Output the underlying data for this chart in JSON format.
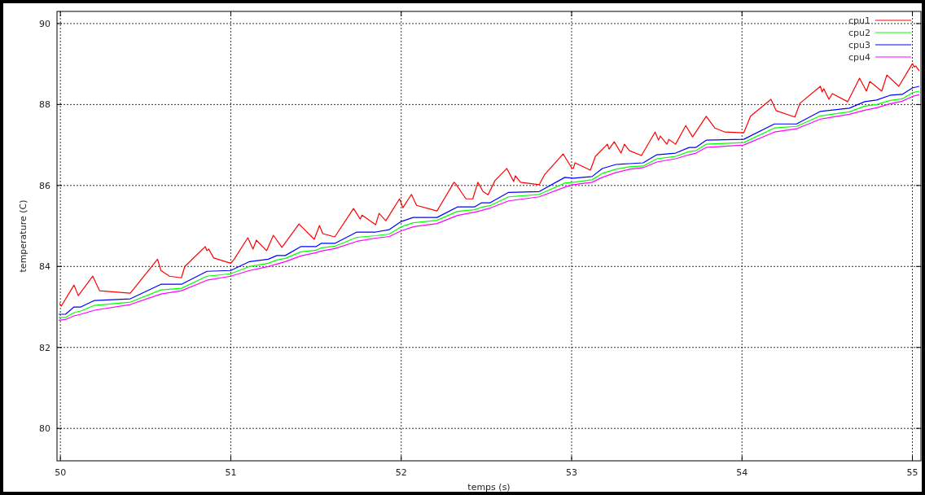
{
  "chart_data": {
    "type": "line",
    "xlabel": "temps (s)",
    "ylabel": "temperature (C)",
    "xlim": [
      49.98,
      55.05
    ],
    "xticks": [
      50,
      51,
      52,
      53,
      54,
      55
    ],
    "ylim": [
      79.2,
      90.3
    ],
    "yticks": [
      80,
      82,
      84,
      86,
      88,
      90
    ],
    "grid": true,
    "legend": "top right",
    "line_style": "solid",
    "marker": "none",
    "series": [
      {
        "name": "cpu1",
        "color": "#ff0000",
        "x": [
          49.995,
          50.005,
          50.08,
          50.105,
          50.19,
          50.23,
          50.41,
          50.57,
          50.59,
          50.64,
          50.71,
          50.73,
          50.85,
          50.86,
          50.87,
          50.9,
          51.0,
          51.02,
          51.1,
          51.13,
          51.15,
          51.21,
          51.25,
          51.3,
          51.4,
          51.49,
          51.52,
          51.54,
          51.61,
          51.72,
          51.76,
          51.77,
          51.85,
          51.87,
          51.91,
          51.99,
          52.01,
          52.06,
          52.09,
          52.21,
          52.31,
          52.32,
          52.38,
          52.42,
          52.45,
          52.48,
          52.51,
          52.55,
          52.62,
          52.66,
          52.67,
          52.7,
          52.81,
          52.84,
          52.95,
          53.0,
          53.01,
          53.02,
          53.11,
          53.14,
          53.21,
          53.22,
          53.25,
          53.29,
          53.31,
          53.34,
          53.41,
          53.49,
          53.51,
          53.52,
          53.56,
          53.57,
          53.61,
          53.67,
          53.71,
          53.79,
          53.84,
          53.9,
          54.01,
          54.05,
          54.17,
          54.2,
          54.31,
          54.34,
          54.46,
          54.47,
          54.48,
          54.51,
          54.53,
          54.62,
          54.69,
          54.73,
          54.75,
          54.82,
          54.85,
          54.92,
          55.0,
          55.01,
          55.02,
          55.04
        ],
        "values": [
          83.09,
          83.02,
          83.54,
          83.28,
          83.76,
          83.4,
          83.34,
          84.18,
          83.9,
          83.76,
          83.72,
          84.0,
          84.49,
          84.39,
          84.43,
          84.21,
          84.08,
          84.18,
          84.71,
          84.43,
          84.65,
          84.39,
          84.77,
          84.47,
          85.05,
          84.67,
          85.01,
          84.81,
          84.73,
          85.43,
          85.17,
          85.27,
          85.03,
          85.31,
          85.13,
          85.67,
          85.45,
          85.78,
          85.51,
          85.37,
          86.08,
          86.04,
          85.67,
          85.67,
          86.08,
          85.85,
          85.77,
          86.12,
          86.42,
          86.1,
          86.24,
          86.08,
          86.02,
          86.26,
          86.78,
          86.44,
          86.42,
          86.56,
          86.38,
          86.72,
          87.02,
          86.9,
          87.08,
          86.8,
          87.02,
          86.86,
          86.74,
          87.32,
          87.12,
          87.22,
          87.02,
          87.14,
          87.02,
          87.48,
          87.2,
          87.71,
          87.42,
          87.32,
          87.3,
          87.71,
          88.13,
          87.85,
          87.69,
          88.03,
          88.45,
          88.31,
          88.39,
          88.13,
          88.27,
          88.07,
          88.65,
          88.33,
          88.57,
          88.33,
          88.73,
          88.45,
          89.01,
          88.93,
          88.95,
          88.83
        ]
      },
      {
        "name": "cpu2",
        "color": "#00ff00",
        "x": [
          49.99,
          50.03,
          50.08,
          50.12,
          50.2,
          50.41,
          50.59,
          50.71,
          50.86,
          51.0,
          51.11,
          51.22,
          51.27,
          51.32,
          51.41,
          51.5,
          51.53,
          51.61,
          51.74,
          51.85,
          51.93,
          52.0,
          52.07,
          52.21,
          52.33,
          52.43,
          52.47,
          52.52,
          52.63,
          52.81,
          52.96,
          53.01,
          53.12,
          53.18,
          53.26,
          53.34,
          53.42,
          53.5,
          53.61,
          53.69,
          53.73,
          53.79,
          54.01,
          54.19,
          54.32,
          54.46,
          54.63,
          54.72,
          54.79,
          54.87,
          54.94,
          55.0,
          55.04
        ],
        "values": [
          82.74,
          82.74,
          82.86,
          82.9,
          83.04,
          83.12,
          83.42,
          83.46,
          83.76,
          83.82,
          84.0,
          84.08,
          84.16,
          84.2,
          84.36,
          84.4,
          84.46,
          84.5,
          84.72,
          84.76,
          84.8,
          84.98,
          85.08,
          85.14,
          85.36,
          85.4,
          85.46,
          85.5,
          85.72,
          85.78,
          86.06,
          86.08,
          86.14,
          86.3,
          86.4,
          86.46,
          86.48,
          86.66,
          86.72,
          86.84,
          86.86,
          87.02,
          87.06,
          87.42,
          87.46,
          87.72,
          87.82,
          87.96,
          88.0,
          88.1,
          88.14,
          88.29,
          88.33
        ]
      },
      {
        "name": "cpu3",
        "color": "#0000ff",
        "x": [
          49.99,
          50.03,
          50.08,
          50.12,
          50.2,
          50.41,
          50.59,
          50.71,
          50.86,
          51.0,
          51.11,
          51.22,
          51.27,
          51.32,
          51.41,
          51.5,
          51.53,
          51.61,
          51.74,
          51.85,
          51.93,
          52.0,
          52.07,
          52.21,
          52.33,
          52.43,
          52.47,
          52.52,
          52.63,
          52.81,
          52.96,
          53.01,
          53.12,
          53.18,
          53.26,
          53.34,
          53.42,
          53.5,
          53.61,
          53.69,
          53.73,
          53.79,
          54.01,
          54.19,
          54.32,
          54.46,
          54.63,
          54.72,
          54.79,
          54.87,
          54.94,
          55.0,
          55.04
        ],
        "values": [
          82.82,
          82.82,
          83.0,
          83.0,
          83.16,
          83.2,
          83.56,
          83.56,
          83.88,
          83.9,
          84.12,
          84.18,
          84.27,
          84.27,
          84.49,
          84.49,
          84.57,
          84.57,
          84.85,
          84.85,
          84.91,
          85.11,
          85.21,
          85.21,
          85.47,
          85.47,
          85.57,
          85.57,
          85.83,
          85.85,
          86.2,
          86.18,
          86.22,
          86.42,
          86.52,
          86.54,
          86.56,
          86.76,
          86.8,
          86.94,
          86.94,
          87.12,
          87.14,
          87.52,
          87.52,
          87.83,
          87.91,
          88.07,
          88.11,
          88.23,
          88.25,
          88.41,
          88.45
        ]
      },
      {
        "name": "cpu4",
        "color": "#ff00ff",
        "x": [
          49.99,
          50.03,
          50.08,
          50.12,
          50.2,
          50.41,
          50.59,
          50.71,
          50.86,
          51.0,
          51.11,
          51.22,
          51.27,
          51.32,
          51.41,
          51.5,
          51.53,
          51.61,
          51.74,
          51.85,
          51.93,
          52.0,
          52.07,
          52.21,
          52.33,
          52.43,
          52.47,
          52.52,
          52.63,
          52.81,
          52.96,
          53.01,
          53.12,
          53.18,
          53.26,
          53.34,
          53.42,
          53.5,
          53.61,
          53.69,
          53.73,
          53.79,
          54.01,
          54.19,
          54.32,
          54.46,
          54.63,
          54.72,
          54.79,
          54.87,
          54.94,
          55.0,
          55.04
        ],
        "values": [
          82.67,
          82.69,
          82.78,
          82.82,
          82.92,
          83.06,
          83.32,
          83.4,
          83.66,
          83.76,
          83.9,
          84.0,
          84.06,
          84.12,
          84.26,
          84.34,
          84.38,
          84.44,
          84.62,
          84.7,
          84.74,
          84.88,
          84.98,
          85.06,
          85.26,
          85.34,
          85.38,
          85.44,
          85.62,
          85.72,
          85.96,
          86.02,
          86.08,
          86.2,
          86.32,
          86.4,
          86.44,
          86.58,
          86.66,
          86.76,
          86.8,
          86.94,
          87.0,
          87.32,
          87.4,
          87.64,
          87.76,
          87.86,
          87.92,
          88.02,
          88.08,
          88.2,
          88.24
        ]
      }
    ]
  }
}
